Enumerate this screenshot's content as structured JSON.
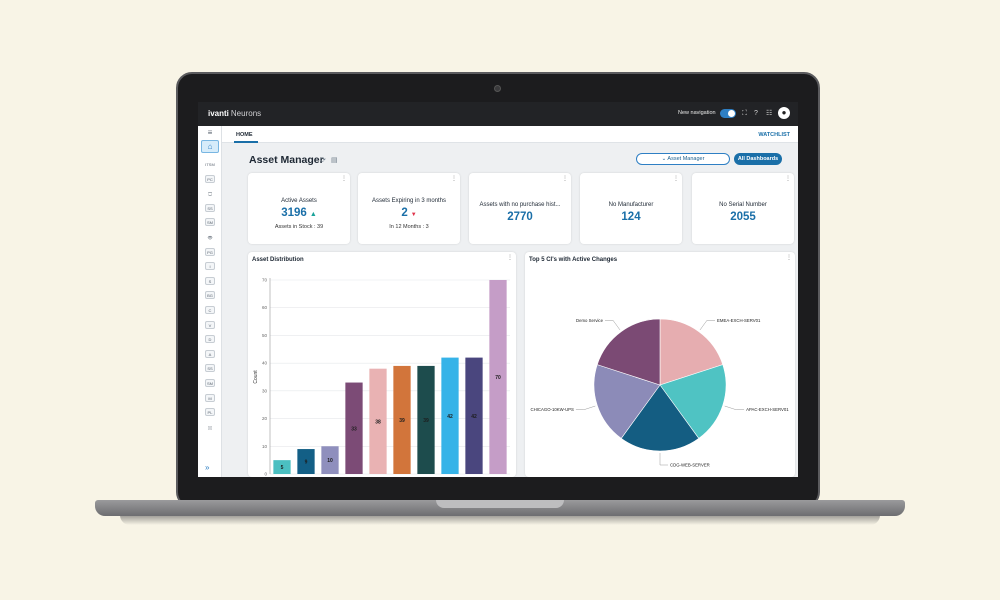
{
  "app": {
    "brand_bold": "ivanti",
    "brand_rest": "Neurons",
    "new_nav_label": "New navigation",
    "icons": [
      "fullscreen-icon",
      "help-icon",
      "grid-menu-icon",
      "user-avatar-icon"
    ]
  },
  "sidebar": {
    "menu_icon": "≡",
    "home_icon": "⌂",
    "items": [
      {
        "label": "ITSM",
        "boxed": false
      },
      {
        "label": "PC",
        "boxed": true
      },
      {
        "label": "🖵",
        "boxed": false
      },
      {
        "label": "SS",
        "boxed": true
      },
      {
        "label": "SM",
        "boxed": true
      },
      {
        "label": "👁",
        "boxed": false
      },
      {
        "label": "PG",
        "boxed": true
      },
      {
        "label": "I",
        "boxed": true
      },
      {
        "label": "S",
        "boxed": true
      },
      {
        "label": "BG",
        "boxed": true
      },
      {
        "label": "C",
        "boxed": true
      },
      {
        "label": "V",
        "boxed": true
      },
      {
        "label": "D",
        "boxed": true
      },
      {
        "label": "A",
        "boxed": true
      },
      {
        "label": "SS",
        "boxed": true
      },
      {
        "label": "SM",
        "boxed": true
      },
      {
        "label": "M",
        "boxed": true
      },
      {
        "label": "PL",
        "boxed": true
      },
      {
        "label": "▯▯",
        "boxed": false
      }
    ],
    "expand_icon": "»"
  },
  "tabs": {
    "home": "HOME",
    "watchlist": "WATCHLIST"
  },
  "page": {
    "title": "Asset Manager",
    "refresh_icon": "⟳",
    "layout_icon": "▤",
    "asset_manager_button": "⌄  Asset Manager",
    "all_dashboards_button": "All Dashboards"
  },
  "kpis": [
    {
      "label": "Active Assets",
      "value": "3196",
      "trend": "up",
      "trend_glyph": "▲",
      "sub": "Assets in Stock : 39"
    },
    {
      "label": "Assets Expiring in 3 months",
      "value": "2",
      "trend": "down",
      "trend_glyph": "▼",
      "sub": "In 12 Months : 3"
    },
    {
      "label": "Assets with no purchase hist...",
      "value": "2770",
      "trend": "",
      "trend_glyph": "",
      "sub": ""
    },
    {
      "label": "No Manufacturer",
      "value": "124",
      "trend": "",
      "trend_glyph": "",
      "sub": ""
    },
    {
      "label": "No Serial Number",
      "value": "2055",
      "trend": "",
      "trend_glyph": "",
      "sub": ""
    }
  ],
  "panels": {
    "bar_title": "Asset Distribution",
    "pie_title": "Top 5 CI's with Active Changes",
    "menu_glyph": "⋮"
  },
  "colors": {
    "accent": "#1a6fa8",
    "up": "#1aa39a",
    "down": "#e0344b"
  },
  "chart_data": [
    {
      "type": "bar",
      "title": "Asset Distribution",
      "ylabel": "Count",
      "ylim": [
        0,
        70
      ],
      "yticks": [
        0,
        10,
        20,
        30,
        40,
        50,
        60,
        70
      ],
      "grid": true,
      "values": [
        5,
        9,
        10,
        33,
        38,
        39,
        39,
        42,
        42,
        70
      ],
      "colors": [
        "#4bbfc1",
        "#135f86",
        "#8f8fbd",
        "#7c4b76",
        "#e9b2b3",
        "#d2753b",
        "#1d4c4d",
        "#36b3e8",
        "#4a467e",
        "#c59dc7"
      ]
    },
    {
      "type": "pie",
      "title": "Top 5 CI's with Active Changes",
      "slices": [
        {
          "label": "EMEA-EXCH-SERV01",
          "value": 20,
          "color": "#e6adb0"
        },
        {
          "label": "APAC-EXCH-SERV01",
          "value": 20,
          "color": "#4fc3c3"
        },
        {
          "label": "CDG-WEB-SERVER",
          "value": 20,
          "color": "#145d82"
        },
        {
          "label": "CHICAGO-10KW-UPS",
          "value": 20,
          "color": "#8c8bb8"
        },
        {
          "label": "Demo Service",
          "value": 20,
          "color": "#7b4a74"
        }
      ]
    }
  ]
}
